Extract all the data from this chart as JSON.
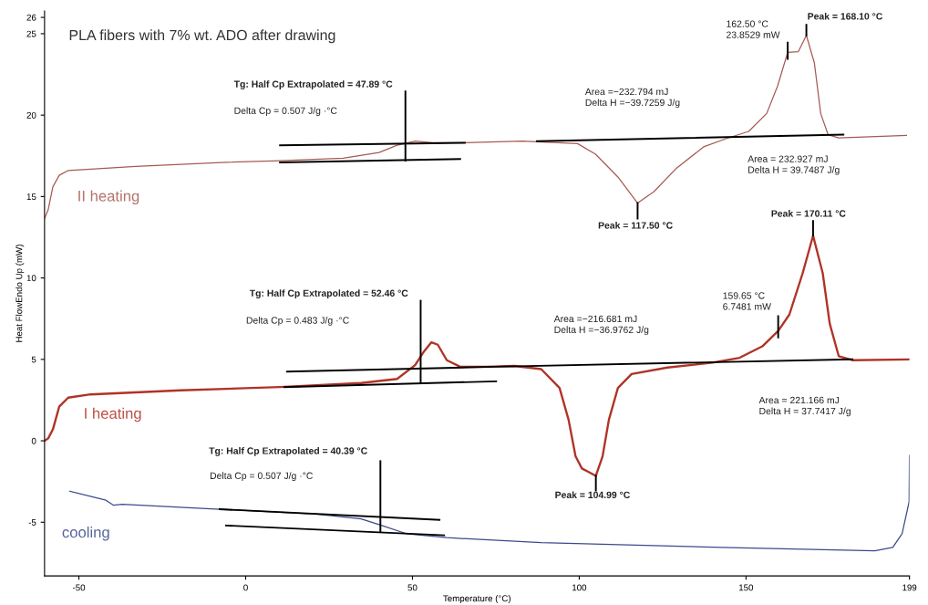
{
  "chart_data": {
    "type": "line",
    "title": "PLA fibers with 7% wt. ADO after drawing",
    "xlabel": "Temperature (°C)",
    "ylabel": "Heat FlowEndo Up (mW)",
    "xlim": [
      -60.3,
      199
    ],
    "xticks": [
      -50,
      0,
      50,
      100,
      150,
      199
    ],
    "ylim": [
      -8.3,
      26.4
    ],
    "yticks": [
      -5,
      0,
      5,
      10,
      15,
      20,
      25,
      26
    ],
    "grid": false,
    "legend": false,
    "series": [
      {
        "name": "II heating",
        "color": "#a65a52",
        "x": [
          -60.3,
          -59.2,
          -57.8,
          -55.9,
          -53.2,
          -33,
          -5.9,
          10.3,
          29.2,
          40,
          45.4,
          50.8,
          56.2,
          65.7,
          83,
          99.5,
          104.9,
          111.6,
          117.5,
          122.4,
          129.2,
          137.3,
          144,
          150.8,
          156.2,
          159.5,
          162.5,
          165.7,
          168.1,
          170.5,
          172.4,
          174.6,
          177.8,
          198.1
        ],
        "values": [
          13.65,
          14.2,
          15.6,
          16.3,
          16.6,
          16.85,
          17.1,
          17.2,
          17.35,
          17.7,
          18.15,
          18.4,
          18.3,
          18.3,
          18.4,
          18.25,
          17.6,
          16.2,
          14.6,
          15.3,
          16.75,
          18.05,
          18.55,
          19,
          20.1,
          21.8,
          23.85,
          23.9,
          24.9,
          23.2,
          20.1,
          18.8,
          18.6,
          18.75
        ]
      },
      {
        "name": "I heating",
        "color": "#b03326",
        "x": [
          -60.3,
          -59.2,
          -57.8,
          -55.9,
          -53.2,
          -46.5,
          -19.5,
          10.3,
          34.6,
          45.4,
          50.8,
          53.5,
          55.7,
          57.6,
          60.3,
          64.3,
          72.4,
          80.5,
          88.6,
          94.1,
          96.8,
          98.9,
          100.8,
          102.7,
          104.99,
          107,
          108.9,
          111.6,
          115.7,
          126.5,
          140,
          148.1,
          154.9,
          159.65,
          163,
          167,
          170.11,
          173,
          175.1,
          177.8,
          181.9,
          198.9
        ],
        "values": [
          0,
          0.15,
          0.7,
          2.1,
          2.65,
          2.85,
          3.1,
          3.3,
          3.55,
          3.8,
          4.65,
          5.5,
          6.05,
          5.9,
          4.95,
          4.55,
          4.55,
          4.6,
          4.4,
          3.25,
          1.3,
          -0.95,
          -1.7,
          -1.9,
          -2.15,
          -0.95,
          1.3,
          3.25,
          4.1,
          4.5,
          4.8,
          5.1,
          5.8,
          6.75,
          7.75,
          10.3,
          12.6,
          10.3,
          7.2,
          5.2,
          4.95,
          5.0
        ]
      },
      {
        "name": "cooling",
        "color": "#3b4a8c",
        "x": [
          -52.7,
          -41.9,
          -39.7,
          -37,
          -7.8,
          21.1,
          34.6,
          40,
          48.1,
          60.3,
          88.6,
          142.7,
          188.6,
          194,
          196.8,
          198.9,
          199
        ],
        "values": [
          -3.1,
          -3.65,
          -3.95,
          -3.9,
          -4.2,
          -4.5,
          -4.8,
          -5.15,
          -5.7,
          -5.95,
          -6.25,
          -6.55,
          -6.75,
          -6.55,
          -5.7,
          -3.75,
          -0.9
        ]
      },
      {
        "color": "#000000",
        "x": [
          10.3,
          65.7
        ],
        "values": [
          18.15,
          18.3
        ]
      },
      {
        "color": "#000000",
        "x": [
          10.3,
          64.3
        ],
        "values": [
          17.1,
          17.3
        ]
      },
      {
        "color": "#000000",
        "x": [
          47.89,
          47.89
        ],
        "values": [
          17.2,
          21.45
        ]
      },
      {
        "color": "#000000",
        "x": [
          87.3,
          179.2
        ],
        "values": [
          18.4,
          18.8
        ]
      },
      {
        "color": "#000000",
        "x": [
          117.5,
          117.5
        ],
        "values": [
          14.6,
          13.65
        ]
      },
      {
        "color": "#000000",
        "x": [
          168.1,
          168.1
        ],
        "values": [
          24.9,
          25.55
        ]
      },
      {
        "color": "#000000",
        "x": [
          162.5,
          162.5
        ],
        "values": [
          24.45,
          23.45
        ]
      },
      {
        "color": "#000000",
        "x": [
          12.4,
          75.1,
          181.9
        ],
        "values": [
          4.25,
          4.55,
          5.0
        ]
      },
      {
        "color": "#000000",
        "x": [
          11.6,
          75.1
        ],
        "values": [
          3.3,
          3.65
        ]
      },
      {
        "color": "#000000",
        "x": [
          52.46,
          52.46
        ],
        "values": [
          3.55,
          8.6
        ]
      },
      {
        "color": "#000000",
        "x": [
          104.99,
          104.99
        ],
        "values": [
          -2.15,
          -3.05
        ]
      },
      {
        "color": "#000000",
        "x": [
          170.11,
          170.11
        ],
        "values": [
          12.6,
          13.5
        ]
      },
      {
        "color": "#000000",
        "x": [
          159.65,
          159.65
        ],
        "values": [
          7.65,
          6.35
        ]
      },
      {
        "color": "#000000",
        "x": [
          -7.8,
          58.1
        ],
        "values": [
          -4.2,
          -4.85
        ]
      },
      {
        "color": "#000000",
        "x": [
          -5.9,
          59.5
        ],
        "values": [
          -5.2,
          -5.8
        ]
      },
      {
        "color": "#000000",
        "x": [
          40.39,
          40.39
        ],
        "values": [
          -1.25,
          -5.6
        ]
      }
    ],
    "annotations": [
      "Tg: Half Cp Extrapolated = 47.89 °C",
      "Delta Cp = 0.507 J/g ·°C",
      "Area =−232.794 mJ\nDelta H =−39.7259 J/g",
      "162.50 °C\n23.8529 mW",
      "Peak = 168.10 °C",
      "Area = 232.927 mJ\nDelta H = 39.7487 J/g",
      "Peak = 117.50 °C",
      "Peak = 170.11 °C",
      "Tg: Half Cp Extrapolated = 52.46 °C",
      "Delta Cp = 0.483 J/g ·°C",
      "Area =−216.681 mJ\nDelta H =−36.9762 J/g",
      "159.65 °C\n6.7481 mW",
      "Area = 221.166 mJ\nDelta H = 37.7417 J/g",
      "Peak = 104.99 °C",
      "Tg: Half Cp Extrapolated = 40.39 °C",
      "Delta Cp = 0.507 J/g ·°C"
    ]
  }
}
